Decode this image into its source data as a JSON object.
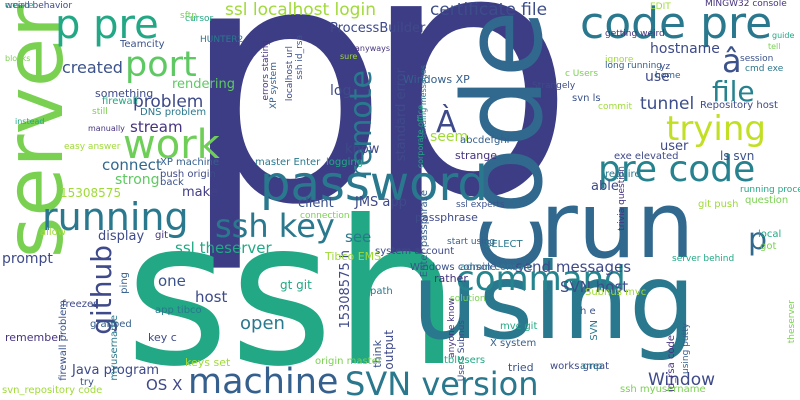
{
  "word_cloud": {
    "big": {
      "p1": "p",
      "p2": "p",
      "ssh": "ssh",
      "server": "server",
      "code": "code",
      "run": "run",
      "using": "using"
    },
    "large": {
      "p_pre": "p pre",
      "code_pre": "code pre",
      "password": "password",
      "running": "running",
      "work": "work",
      "machine": "machine",
      "svn_version": "SVN version",
      "pre_code": "pre code",
      "trying": "trying",
      "command": "command",
      "file": "file",
      "ssh_key": "ssh key",
      "github": "github",
      "port": "port",
      "remote": "remote",
      "a_circ": "â",
      "a_grave": "À",
      "p_small": "p"
    },
    "medium": {
      "ssl_localhost_login": "ssl localhost login",
      "certificate_file": "certificate file",
      "created": "created",
      "problem": "problem",
      "stream": "stream",
      "connect": "connect",
      "strong": "strong",
      "make": "make",
      "display": "display",
      "prompt": "prompt",
      "host": "host",
      "open": "open",
      "one": "one",
      "os_x": "OS X",
      "java_program": "Java program",
      "ssl_theserver": "ssl theserver",
      "send_messages": "send messages",
      "svn_host": "SVN host",
      "window": "Window",
      "tunnel": "tunnel",
      "hostname": "hostname",
      "use": "use",
      "log": "log",
      "know": "know",
      "client": "client",
      "jms_app": "JMS app",
      "see": "see",
      "rendering": "rendering",
      "processbuilder": "ProcessBuilder",
      "standard_error": "standard error",
      "user": "user",
      "able": "able",
      "something": "something",
      "num_15308575": "15308575",
      "num_15308575_h": "15308575 h",
      "output": "output"
    },
    "small": [
      "weird behavior",
      "Teamcity",
      "HUNTER2",
      "cursor",
      "sftp",
      "ignore",
      "getting weird",
      "long running",
      "Repository host",
      "session",
      "cmd exe",
      "guide",
      "tell",
      "EDIT",
      "MINGW32 console",
      "Windows XP",
      "Strangely",
      "svn ls",
      "sending messages",
      "corporate office",
      "c Users",
      "commit",
      "errors stating",
      "XP system",
      "localhost url",
      "ssh id_rsa",
      "DNS problem",
      "firewall",
      "still",
      "easy answer",
      "manually",
      "XP machine",
      "push origin",
      "back",
      "master Enter",
      "logging",
      "connection",
      "seem",
      "strange",
      "abcdefghi",
      "exe elevated",
      "ls svn",
      "require",
      "running process",
      "question",
      "git push",
      "trivia question",
      "Enter passphrase",
      "passphrase",
      "ssl experts",
      "SELECT",
      "local",
      "got",
      "Tibco EMS",
      "rather",
      "start using",
      "system account",
      "Windows console",
      "admin console",
      "server behind",
      "theserver",
      "allow",
      "git",
      "ping",
      "freezes",
      "firewall problem",
      "myusername",
      "mvc git",
      "solution",
      "Subnus mvc",
      "anyone know",
      "X system",
      "Users Subnus",
      "think",
      "path",
      "gt git",
      "origin master",
      "keys set",
      "id_rsa code",
      "using putty",
      "works great",
      "tried",
      "amp",
      "tblUsers",
      "ssh myusername",
      "svn_repository code",
      "remember",
      "grabbed",
      "key c",
      "try",
      "app tibco",
      "instead",
      "blocks",
      "sure",
      "anyways",
      "home",
      "yz",
      "h e",
      "SVN",
      "create"
    ]
  }
}
